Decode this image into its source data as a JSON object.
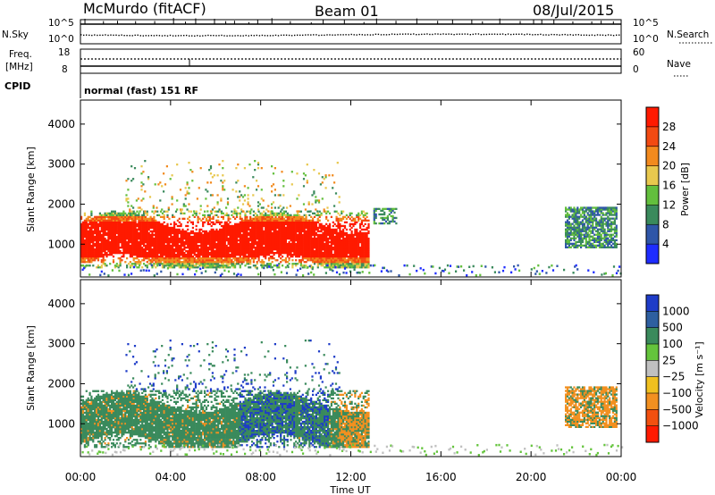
{
  "header": {
    "station": "McMurdo (fitACF)",
    "beam": "Beam 01",
    "date": "08/Jul/2015"
  },
  "top_panels": {
    "nsky_label": "N.Sky",
    "nsearch_label": "N.Search",
    "nsky_ticks": [
      "10^5",
      "10^0"
    ],
    "nsearch_ticks": [
      "10^5",
      "10^0"
    ],
    "freq_label_line1": "Freq.",
    "freq_label_line2": "[MHz]",
    "freq_ticks": [
      "18",
      "8"
    ],
    "nave_label": "Nave",
    "nave_ticks": [
      "60",
      "0"
    ],
    "cpid_label": "CPID",
    "cpid_value": "normal (fast) 151 RF"
  },
  "chart_data": [
    {
      "type": "heatmap",
      "name": "power",
      "ylabel": "Slant Range [km]",
      "yticks": [
        1000,
        2000,
        3000,
        4000
      ],
      "ylim": [
        180,
        4600
      ],
      "xlim": [
        0,
        24
      ],
      "colorbar_label": "Power [dB]",
      "colorbar_ticks": [
        "4",
        "8",
        "12",
        "16",
        "20",
        "24",
        "28"
      ],
      "colors": [
        "#1e2cff",
        "#2f56a8",
        "#3a8a5c",
        "#63bf3d",
        "#e8c84e",
        "#f28a1e",
        "#f24a12",
        "#ff1a00"
      ],
      "echo_regions": [
        {
          "t0": 0.0,
          "t1": 12.8,
          "r0": 400,
          "r1": 1800,
          "level": "strong"
        },
        {
          "t0": 2.0,
          "t1": 11.5,
          "r0": 1800,
          "r1": 3100,
          "level": "sparse"
        },
        {
          "t0": 13.0,
          "t1": 14.0,
          "r0": 1500,
          "r1": 1900,
          "level": "weak"
        },
        {
          "t0": 21.5,
          "t1": 23.8,
          "r0": 900,
          "r1": 1900,
          "level": "moderate"
        }
      ]
    },
    {
      "type": "heatmap",
      "name": "velocity",
      "ylabel": "Slant Range [km]",
      "xlabel": "Time UT",
      "yticks": [
        1000,
        2000,
        3000,
        4000
      ],
      "ylim": [
        180,
        4600
      ],
      "xlim": [
        0,
        24
      ],
      "xticks": [
        "00:00",
        "04:00",
        "08:00",
        "12:00",
        "16:00",
        "20:00",
        "00:00"
      ],
      "colorbar_label": "Velocity [m s⁻¹]",
      "colorbar_ticks": [
        "1000",
        "500",
        "100",
        "25",
        "−25",
        "−100",
        "−500",
        "−1000"
      ],
      "colors": [
        "#1e3cc8",
        "#2e5fa0",
        "#3a8a5c",
        "#64c43c",
        "#c0c0c0",
        "#f0c020",
        "#f29020",
        "#f25010",
        "#ff1a00"
      ],
      "echo_regions": [
        {
          "t0": 0.0,
          "t1": 12.8,
          "r0": 400,
          "r1": 1800,
          "level": "strong"
        },
        {
          "t0": 2.0,
          "t1": 11.5,
          "r0": 1800,
          "r1": 3100,
          "level": "sparse"
        },
        {
          "t0": 21.5,
          "t1": 23.8,
          "r0": 900,
          "r1": 1900,
          "level": "moderate"
        }
      ]
    }
  ]
}
